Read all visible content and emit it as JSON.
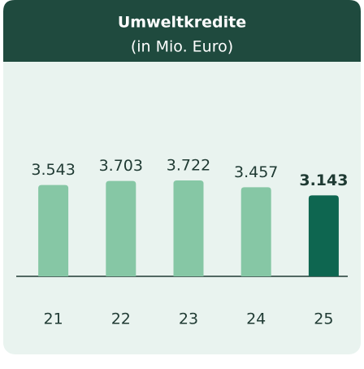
{
  "chart_data": {
    "type": "bar",
    "title": "Umweltkredite",
    "subtitle": "(in Mio. Euro)",
    "categories": [
      "21",
      "22",
      "23",
      "24",
      "25"
    ],
    "values": [
      3543,
      3703,
      3722,
      3457,
      3143
    ],
    "value_labels": [
      "3.543",
      "3.703",
      "3.722",
      "3.457",
      "3.143"
    ],
    "color": "#86c7a5",
    "highlight": "25",
    "highlight_color": "#0e6650"
  }
}
